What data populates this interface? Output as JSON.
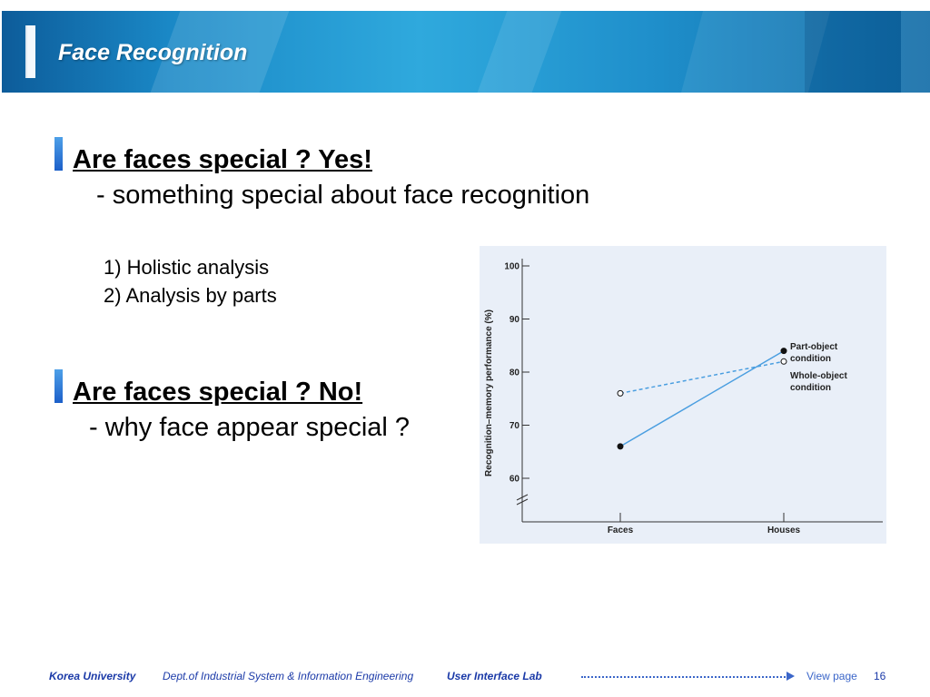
{
  "header": {
    "title": "Face Recognition"
  },
  "section1": {
    "heading": "Are faces special ? Yes!",
    "sub": "- something special about face recognition",
    "items": [
      "1) Holistic analysis",
      "2) Analysis by parts"
    ]
  },
  "section2": {
    "heading": "Are faces special ? No!",
    "sub": "-  why face appear special ?"
  },
  "chart_data": {
    "type": "line",
    "ylabel": "Recognition–memory performance (%)",
    "xlabel": "",
    "categories": [
      "Faces",
      "Houses"
    ],
    "yticks": [
      60,
      70,
      80,
      90,
      100
    ],
    "ylim": [
      55,
      102
    ],
    "axis_break": true,
    "grid": false,
    "series": [
      {
        "name": "Part-object condition",
        "label_lines": [
          "Part-object",
          "condition"
        ],
        "values": [
          66,
          84
        ],
        "line": "solid",
        "marker": "filled",
        "color": "#4a9ee0"
      },
      {
        "name": "Whole-object condition",
        "label_lines": [
          "Whole-object",
          "condition"
        ],
        "values": [
          76,
          82
        ],
        "line": "dashed",
        "marker": "open",
        "color": "#4a9ee0"
      }
    ]
  },
  "footer": {
    "university": "Korea University",
    "dept": "Dept.of  Industrial  System & Information Engineering",
    "lab": "User Interface  Lab",
    "view_page": "View page",
    "page_number": "16"
  }
}
